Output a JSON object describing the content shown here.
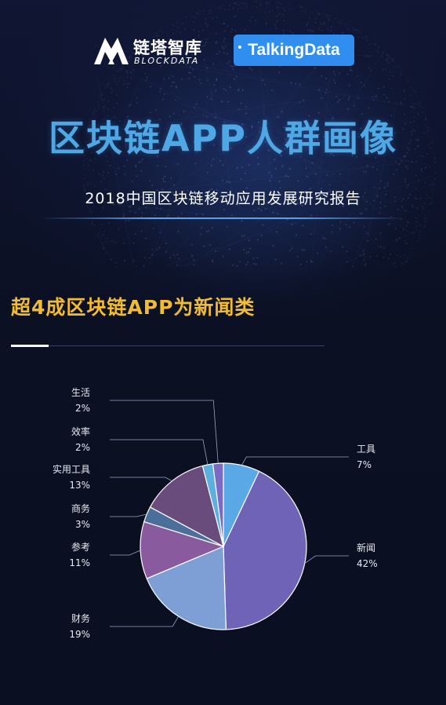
{
  "header": {
    "logo_left_cn": "链塔智库",
    "logo_left_en": "BLOCKDATA",
    "logo_right": "TalkingData",
    "title": "区块链APP人群画像",
    "subtitle": "2018中国区块链移动应用发展研究报告"
  },
  "section": {
    "title": "超4成区块链APP为新闻类"
  },
  "colors": {
    "background": "#0b1023",
    "title_blue": "#4fa8e6",
    "section_gold": "#f2bc2e",
    "logo_blue": "#2f8ef0"
  },
  "chart_data": {
    "type": "pie",
    "title": "",
    "unit": "%",
    "slices": [
      {
        "label": "工具",
        "value": 7,
        "display": "7%",
        "color": "#5aa9e6"
      },
      {
        "label": "新闻",
        "value": 42,
        "display": "42%",
        "color": "#6f63b8"
      },
      {
        "label": "财务",
        "value": 19,
        "display": "19%",
        "color": "#7d9fd6"
      },
      {
        "label": "参考",
        "value": 11,
        "display": "11%",
        "color": "#8a5a9e"
      },
      {
        "label": "商务",
        "value": 3,
        "display": "3%",
        "color": "#4a6f9a"
      },
      {
        "label": "实用工具",
        "value": 13,
        "display": "13%",
        "color": "#6a4c7c"
      },
      {
        "label": "效率",
        "value": 2,
        "display": "2%",
        "color": "#5cb0e0"
      },
      {
        "label": "生活",
        "value": 2,
        "display": "2%",
        "color": "#7b6ac4"
      }
    ]
  }
}
